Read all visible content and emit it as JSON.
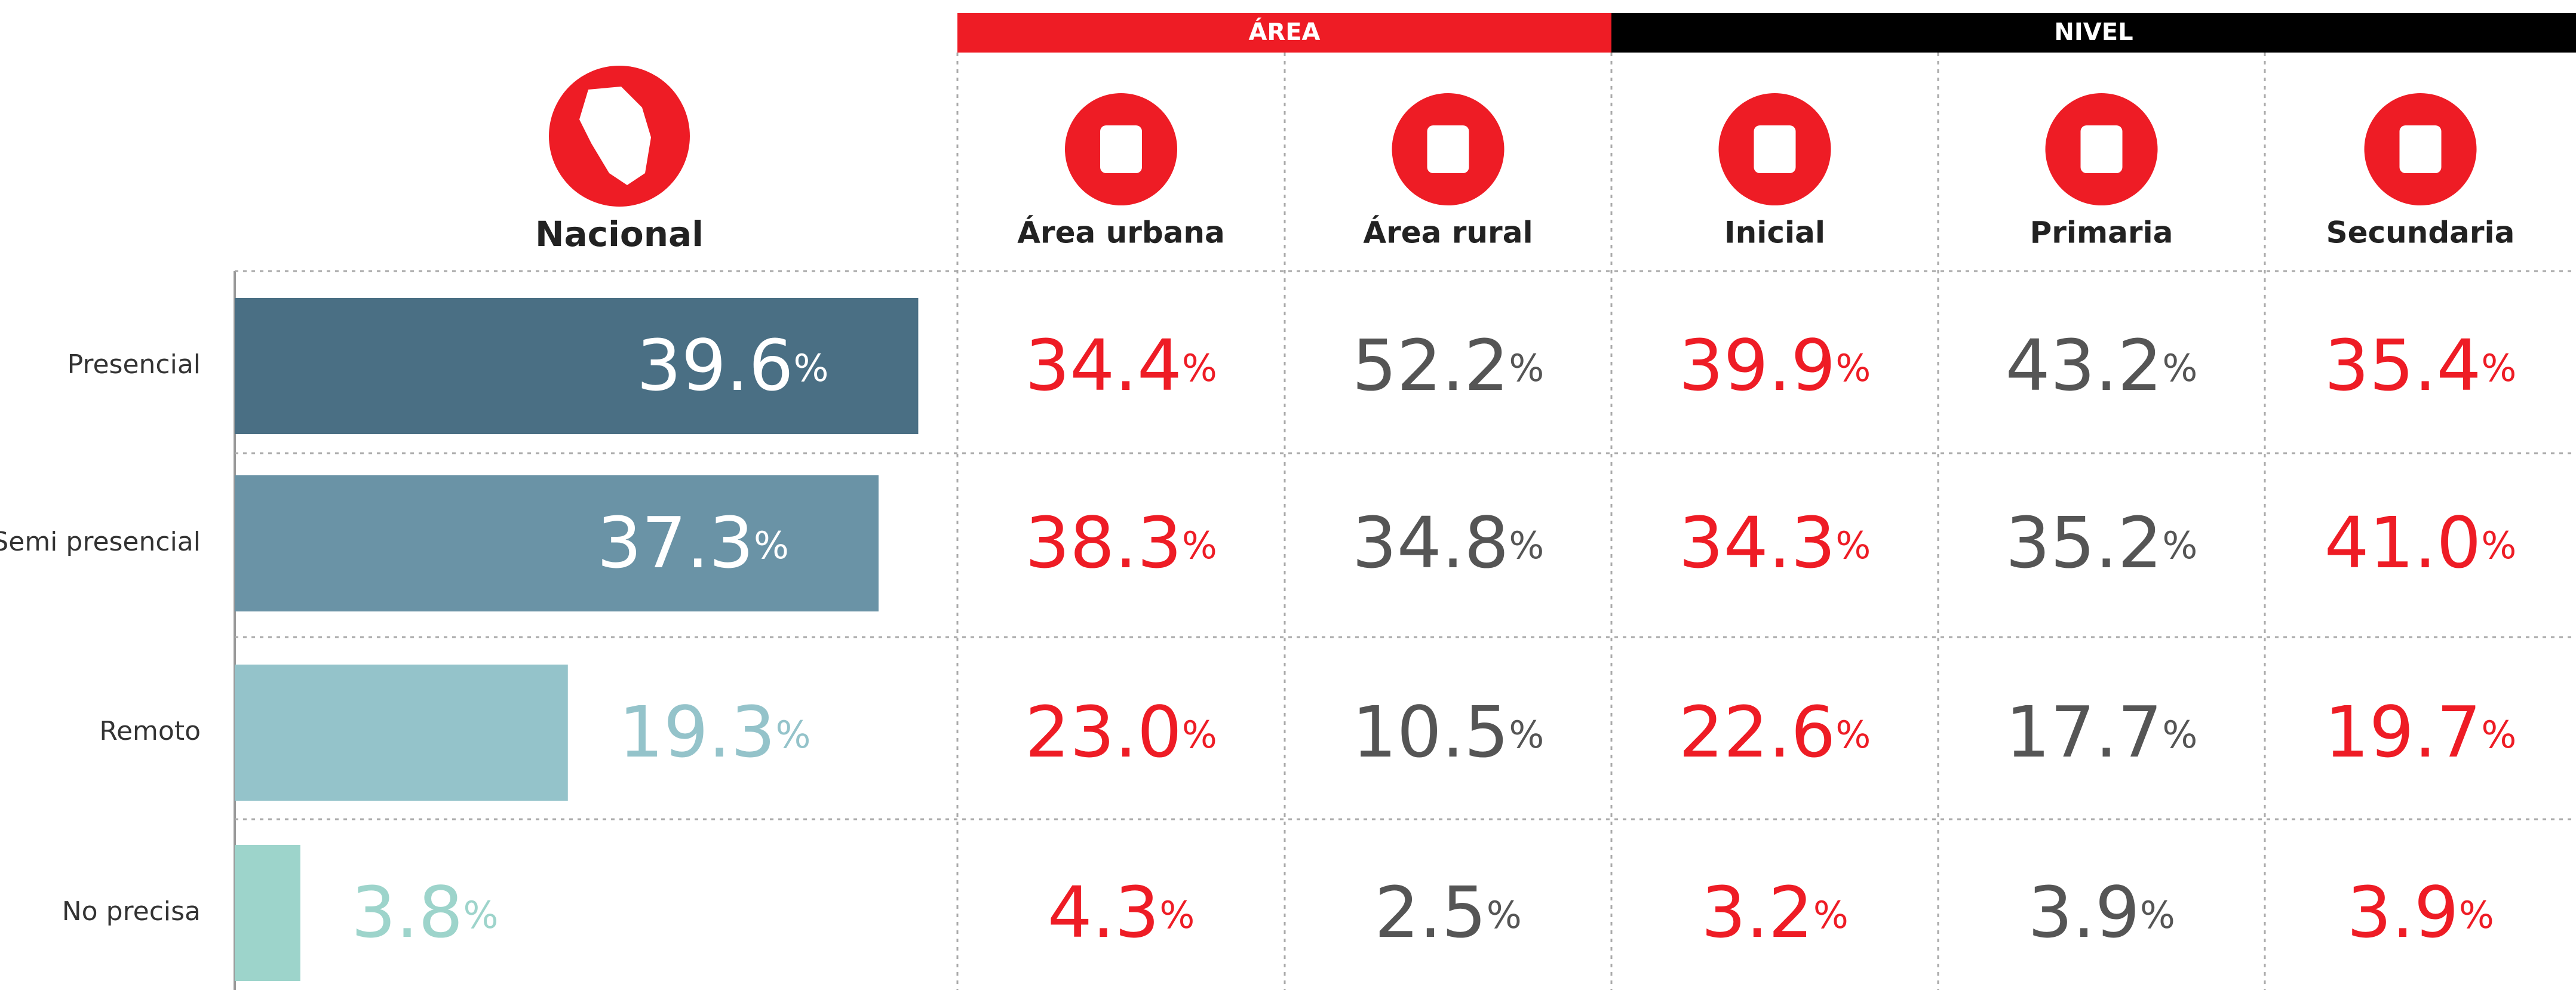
{
  "chart_data": {
    "type": "bar",
    "title": "Nacional",
    "categories": [
      "Presencial",
      "Semi presencial",
      "Remoto",
      "No precisa"
    ],
    "values": [
      39.6,
      37.3,
      19.3,
      3.8
    ],
    "value_labels": [
      "39.6",
      "37.3",
      "19.3",
      "3.8"
    ],
    "unit": "%",
    "colors": [
      "#4a6f84",
      "#6a93a6",
      "#94c3ca",
      "#9dd4cb"
    ]
  },
  "table": {
    "groups": [
      {
        "label": "ÁREA",
        "color": "#ee1c25"
      },
      {
        "label": "NIVEL",
        "color": "#000000"
      }
    ],
    "columns": [
      {
        "label": "Área urbana",
        "group": 0,
        "color": "#ee1c25"
      },
      {
        "label": "Área rural",
        "group": 0,
        "color": "#555555"
      },
      {
        "label": "Inicial",
        "group": 1,
        "color": "#ee1c25"
      },
      {
        "label": "Primaria",
        "group": 1,
        "color": "#555555"
      },
      {
        "label": "Secundaria",
        "group": 1,
        "color": "#ee1c25"
      }
    ],
    "rows": [
      [
        "34.4",
        "52.2",
        "39.9",
        "43.2",
        "35.4"
      ],
      [
        "38.3",
        "34.8",
        "34.3",
        "35.2",
        "41.0"
      ],
      [
        "23.0",
        "10.5",
        "22.6",
        "17.7",
        "19.7"
      ],
      [
        "4.3",
        "2.5",
        "3.2",
        "3.9",
        "3.9"
      ]
    ]
  }
}
